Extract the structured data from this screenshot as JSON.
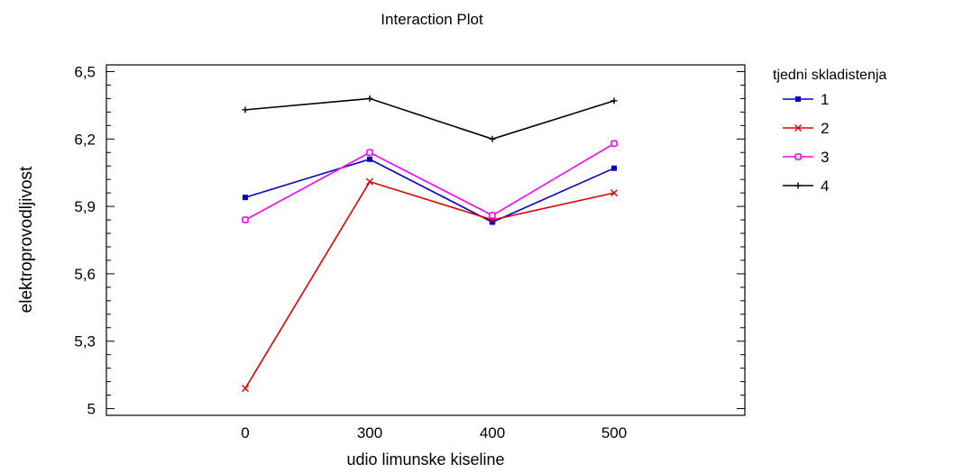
{
  "chart_data": {
    "type": "line",
    "title": "Interaction Plot",
    "xlabel": "udio limunske kiseline",
    "ylabel": "elektroprovodljivost",
    "categories": [
      "0",
      "300",
      "400",
      "500"
    ],
    "y_ticks": [
      "5",
      "5,3",
      "5,6",
      "5,9",
      "6,2",
      "6,5"
    ],
    "ylim": [
      4.97,
      6.53
    ],
    "legend_title": "tjedni skladistenja",
    "legend_position": "right",
    "grid": false,
    "series": [
      {
        "name": "1",
        "color": "#0000cc",
        "marker": "square",
        "values": [
          5.94,
          6.11,
          5.83,
          6.07
        ]
      },
      {
        "name": "2",
        "color": "#e00000",
        "marker": "x",
        "values": [
          5.09,
          6.01,
          5.84,
          5.96
        ]
      },
      {
        "name": "3",
        "color": "#ff00ff",
        "marker": "circle",
        "values": [
          5.84,
          6.14,
          5.86,
          6.18
        ]
      },
      {
        "name": "4",
        "color": "#000000",
        "marker": "plus",
        "values": [
          6.33,
          6.38,
          6.2,
          6.37
        ]
      }
    ]
  }
}
